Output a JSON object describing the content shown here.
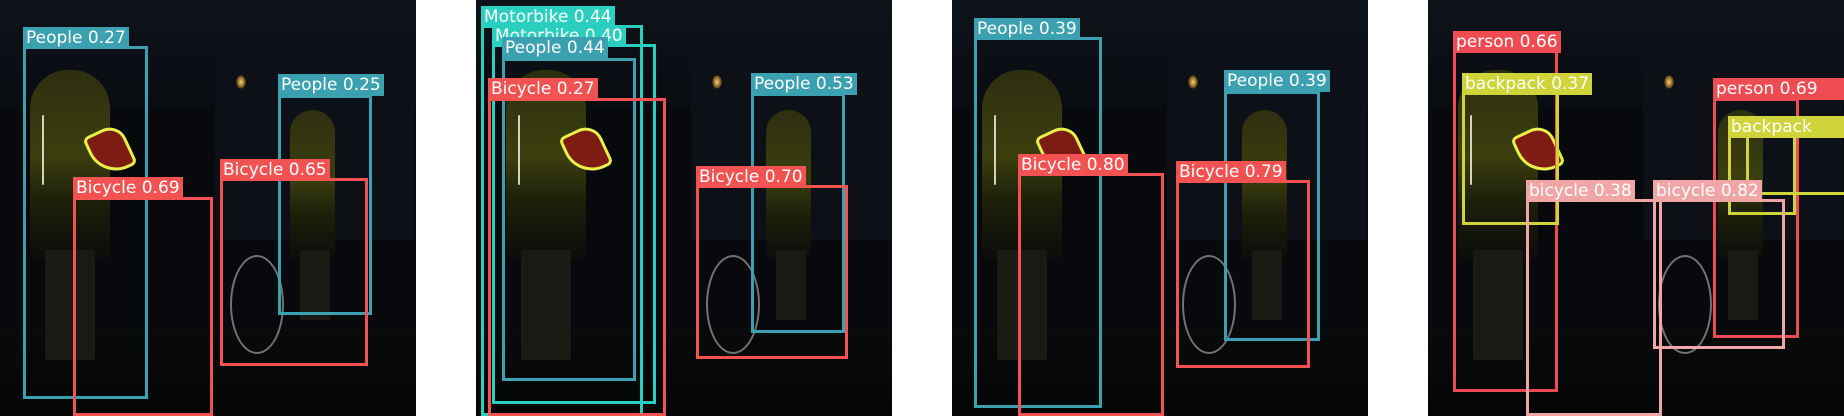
{
  "colors": {
    "people": "#3ba0b0",
    "bicycle": "#f25252",
    "motorbike": "#2bcfc0",
    "person": "#ef4b52",
    "backpack": "#cfd43a",
    "bicycle_lower": "#f0a6a6"
  },
  "panels": [
    {
      "name": "panel-1",
      "detections": [
        {
          "label": "People 0.27",
          "class": "people"
        },
        {
          "label": "People 0.25",
          "class": "people"
        },
        {
          "label": "Bicycle 0.65",
          "class": "bicycle"
        },
        {
          "label": "Bicycle 0.69",
          "class": "bicycle"
        }
      ]
    },
    {
      "name": "panel-2",
      "detections": [
        {
          "label": "Motorbike 0.44",
          "class": "motorbike"
        },
        {
          "label": "Motorbike 0.40",
          "class": "motorbike"
        },
        {
          "label": "People 0.44",
          "class": "people"
        },
        {
          "label": "Bicycle 0.27",
          "class": "bicycle"
        },
        {
          "label": "People 0.53",
          "class": "people"
        },
        {
          "label": "Bicycle 0.70",
          "class": "bicycle"
        }
      ]
    },
    {
      "name": "panel-3",
      "detections": [
        {
          "label": "People 0.39",
          "class": "people"
        },
        {
          "label": "People 0.39",
          "class": "people"
        },
        {
          "label": "Bicycle 0.80",
          "class": "bicycle"
        },
        {
          "label": "Bicycle 0.79",
          "class": "bicycle"
        }
      ]
    },
    {
      "name": "panel-4",
      "detections": [
        {
          "label": "person 0.66",
          "class": "person"
        },
        {
          "label": "backpack 0.37",
          "class": "backpack"
        },
        {
          "label": "person 0.69",
          "class": "person"
        },
        {
          "label": "backpack",
          "class": "backpack"
        },
        {
          "label": "bicycle 0.38",
          "class": "bicycle_lower"
        },
        {
          "label": "bicycle 0.82",
          "class": "bicycle_lower"
        }
      ]
    }
  ]
}
